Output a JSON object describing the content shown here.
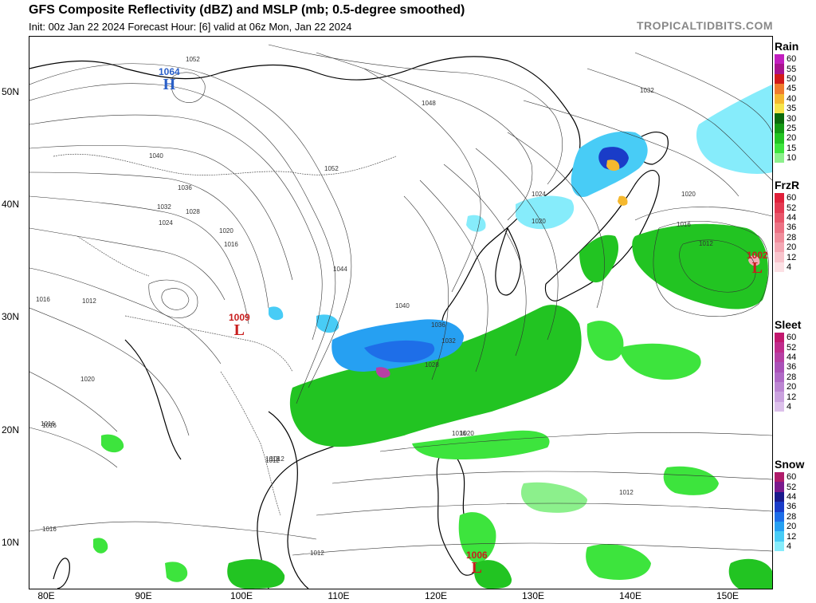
{
  "header": {
    "title": "GFS Composite Reflectivity (dBZ) and MSLP (mb; 0.5-degree smoothed)",
    "subtitle": "Init: 00z Jan 22 2024   Forecast Hour: [6]   valid at 06z Mon, Jan 22 2024",
    "brand": "TROPICALTIDBITS.COM"
  },
  "axes": {
    "lat_labels": [
      "50N",
      "40N",
      "30N",
      "20N",
      "10N"
    ],
    "lon_labels": [
      "80E",
      "90E",
      "100E",
      "110E",
      "120E",
      "130E",
      "140E",
      "150E"
    ]
  },
  "pressure_systems": {
    "high": {
      "value": "1064",
      "letter": "H",
      "color": "#2a5fc8"
    },
    "low_china": {
      "value": "1009",
      "letter": "L",
      "color": "#c81e1e"
    },
    "low_pacific": {
      "value": "1002",
      "letter": "L",
      "color": "#c81e1e"
    },
    "low_philippines": {
      "value": "1006",
      "letter": "L",
      "color": "#c81e1e"
    }
  },
  "isobar_labels": [
    "1052",
    "1040",
    "1036",
    "1032",
    "1028",
    "1024",
    "1020",
    "1016",
    "1012",
    "1016",
    "1020",
    "1016",
    "1012",
    "1048",
    "1052",
    "1044",
    "1040",
    "1036",
    "1032",
    "1028",
    "1024",
    "1020",
    "1016",
    "1012",
    "1032",
    "1020",
    "1016",
    "1012",
    "1016",
    "1020",
    "1012",
    "1012",
    "1012",
    "1016"
  ],
  "legends": {
    "rain": {
      "title": "Rain",
      "levels": [
        "60",
        "55",
        "50",
        "45",
        "40",
        "35",
        "30",
        "25",
        "20",
        "15",
        "10"
      ],
      "colors": [
        "#c21fbf",
        "#a8148e",
        "#d21a1a",
        "#f07c2c",
        "#f5b82e",
        "#f7e44a",
        "#0c6b0c",
        "#149a14",
        "#22c422",
        "#3de43d",
        "#8cf08c"
      ]
    },
    "frzr": {
      "title": "FrzR",
      "levels": [
        "60",
        "52",
        "44",
        "36",
        "28",
        "20",
        "12",
        "4"
      ],
      "colors": [
        "#e0203a",
        "#e43a52",
        "#e8566a",
        "#ec7284",
        "#f08e9c",
        "#f4a8b4",
        "#f8c4cc",
        "#fce0e4"
      ]
    },
    "sleet": {
      "title": "Sleet",
      "levels": [
        "60",
        "52",
        "44",
        "36",
        "28",
        "20",
        "12",
        "4"
      ],
      "colors": [
        "#c2186e",
        "#c02c8c",
        "#b640a4",
        "#aa52b8",
        "#b06ac6",
        "#bc86d2",
        "#caa2de",
        "#dcc0ea"
      ]
    },
    "snow": {
      "title": "Snow",
      "levels": [
        "60",
        "52",
        "44",
        "36",
        "28",
        "20",
        "12",
        "4"
      ],
      "colors": [
        "#b01c6a",
        "#7a1a8c",
        "#1a1a8c",
        "#1a3cc8",
        "#1e6ee8",
        "#26a0f2",
        "#48ccf6",
        "#86ecfb"
      ]
    }
  }
}
